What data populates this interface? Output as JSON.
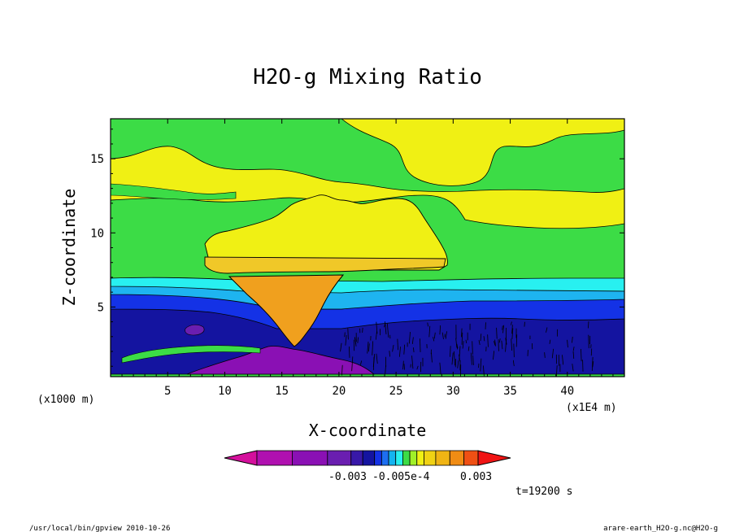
{
  "chart_data": {
    "type": "heatmap",
    "title": "H2O-g Mixing Ratio",
    "xlabel": "X-coordinate",
    "ylabel": "Z-coordinate",
    "x_unit_label": "(x1E4 m)",
    "y_unit_label": "(x1000 m)",
    "xlim": [
      0,
      45
    ],
    "ylim": [
      0.3,
      17.7
    ],
    "x_ticks": [
      5,
      10,
      15,
      20,
      25,
      30,
      35,
      40
    ],
    "y_ticks": [
      5,
      10,
      15
    ],
    "time_label": "t=19200 s",
    "colorbar": {
      "colors": [
        "#d4109c",
        "#b010b0",
        "#8a10b4",
        "#6a1eb0",
        "#3818a8",
        "#1414a0",
        "#1432e6",
        "#1e6ef0",
        "#14b4f0",
        "#28f0f0",
        "#3cdc46",
        "#a0f028",
        "#f0f014",
        "#f0d214",
        "#f0b414",
        "#f08c14",
        "#f05014",
        "#f01414"
      ],
      "labels": [
        "-0.003",
        "-0.005e-4",
        "0.003"
      ]
    },
    "regions": [
      {
        "name": "green upper",
        "color": "#3cdc46"
      },
      {
        "name": "yellow bands",
        "color": "#f0f014"
      },
      {
        "name": "yellow anvil",
        "color": "#f0f014"
      },
      {
        "name": "light orange band",
        "color": "#f0b414"
      },
      {
        "name": "orange core",
        "color": "#f0a01e"
      },
      {
        "name": "cyan layer",
        "color": "#28f0f0"
      },
      {
        "name": "light blue layer",
        "color": "#1eb4f0"
      },
      {
        "name": "blue layer",
        "color": "#1432e6"
      },
      {
        "name": "dark blue layer",
        "color": "#1414a0"
      },
      {
        "name": "purple base",
        "color": "#8a10b4"
      }
    ]
  },
  "footer": {
    "left": "/usr/local/bin/gpview  2010-10-26",
    "right": "arare-earth_H2O-g.nc@H2O-g"
  }
}
